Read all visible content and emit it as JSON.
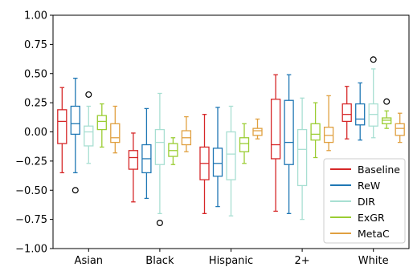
{
  "chart_data": {
    "type": "boxplot",
    "categories": [
      "Asian",
      "Black",
      "Hispanic",
      "2+",
      "White"
    ],
    "ylim": [
      -1.0,
      1.0
    ],
    "yticks": [
      "1.00",
      "0.75",
      "0.50",
      "0.25",
      "0.00",
      "−0.25",
      "−0.50",
      "−0.75",
      "−1.00"
    ],
    "ytick_values": [
      1.0,
      0.75,
      0.5,
      0.25,
      0.0,
      -0.25,
      -0.5,
      -0.75,
      -1.0
    ],
    "grid": false,
    "legend_position": "bottom-right",
    "series": [
      {
        "name": "Baseline",
        "color": "#d62728",
        "boxes": [
          {
            "whislo": -0.35,
            "q1": -0.1,
            "med": 0.09,
            "q3": 0.19,
            "whishi": 0.38,
            "fliers": []
          },
          {
            "whislo": -0.6,
            "q1": -0.32,
            "med": -0.22,
            "q3": -0.16,
            "whishi": -0.01,
            "fliers": []
          },
          {
            "whislo": -0.7,
            "q1": -0.41,
            "med": -0.27,
            "q3": -0.13,
            "whishi": 0.15,
            "fliers": []
          },
          {
            "whislo": -0.68,
            "q1": -0.23,
            "med": -0.11,
            "q3": 0.28,
            "whishi": 0.49,
            "fliers": []
          },
          {
            "whislo": -0.06,
            "q1": 0.09,
            "med": 0.15,
            "q3": 0.24,
            "whishi": 0.39,
            "fliers": []
          }
        ]
      },
      {
        "name": "ReW",
        "color": "#1f77b4",
        "boxes": [
          {
            "whislo": -0.35,
            "q1": -0.02,
            "med": 0.07,
            "q3": 0.22,
            "whishi": 0.46,
            "fliers": [
              -0.5
            ]
          },
          {
            "whislo": -0.57,
            "q1": -0.35,
            "med": -0.23,
            "q3": -0.11,
            "whishi": 0.2,
            "fliers": []
          },
          {
            "whislo": -0.64,
            "q1": -0.38,
            "med": -0.27,
            "q3": -0.14,
            "whishi": 0.21,
            "fliers": []
          },
          {
            "whislo": -0.7,
            "q1": -0.28,
            "med": -0.09,
            "q3": 0.27,
            "whishi": 0.49,
            "fliers": []
          },
          {
            "whislo": -0.07,
            "q1": 0.06,
            "med": 0.11,
            "q3": 0.24,
            "whishi": 0.42,
            "fliers": []
          }
        ]
      },
      {
        "name": "DIR",
        "color": "#a8dfd2",
        "boxes": [
          {
            "whislo": -0.27,
            "q1": -0.12,
            "med": 0.0,
            "q3": 0.05,
            "whishi": 0.22,
            "fliers": [
              0.32
            ]
          },
          {
            "whislo": -0.7,
            "q1": -0.28,
            "med": -0.09,
            "q3": 0.02,
            "whishi": 0.33,
            "fliers": [
              -0.78
            ]
          },
          {
            "whislo": -0.72,
            "q1": -0.41,
            "med": -0.19,
            "q3": 0.0,
            "whishi": 0.22,
            "fliers": []
          },
          {
            "whislo": -0.75,
            "q1": -0.46,
            "med": -0.15,
            "q3": 0.02,
            "whishi": 0.29,
            "fliers": []
          },
          {
            "whislo": -0.05,
            "q1": 0.05,
            "med": 0.15,
            "q3": 0.24,
            "whishi": 0.54,
            "fliers": [
              0.62
            ]
          }
        ]
      },
      {
        "name": "ExGR",
        "color": "#9acd32",
        "boxes": [
          {
            "whislo": -0.13,
            "q1": 0.02,
            "med": 0.09,
            "q3": 0.14,
            "whishi": 0.24,
            "fliers": []
          },
          {
            "whislo": -0.28,
            "q1": -0.21,
            "med": -0.16,
            "q3": -0.1,
            "whishi": -0.05,
            "fliers": []
          },
          {
            "whislo": -0.27,
            "q1": -0.17,
            "med": -0.1,
            "q3": -0.05,
            "whishi": 0.07,
            "fliers": []
          },
          {
            "whislo": -0.22,
            "q1": -0.07,
            "med": -0.02,
            "q3": 0.07,
            "whishi": 0.25,
            "fliers": []
          },
          {
            "whislo": 0.03,
            "q1": 0.07,
            "med": 0.1,
            "q3": 0.12,
            "whishi": 0.18,
            "fliers": [
              0.26
            ]
          }
        ]
      },
      {
        "name": "MetaC",
        "color": "#e0a040",
        "boxes": [
          {
            "whislo": -0.18,
            "q1": -0.09,
            "med": -0.05,
            "q3": 0.07,
            "whishi": 0.22,
            "fliers": []
          },
          {
            "whislo": -0.17,
            "q1": -0.11,
            "med": -0.05,
            "q3": 0.01,
            "whishi": 0.13,
            "fliers": []
          },
          {
            "whislo": -0.06,
            "q1": -0.03,
            "med": 0.01,
            "q3": 0.03,
            "whishi": 0.11,
            "fliers": []
          },
          {
            "whislo": -0.16,
            "q1": -0.09,
            "med": -0.03,
            "q3": 0.04,
            "whishi": 0.31,
            "fliers": []
          },
          {
            "whislo": -0.09,
            "q1": -0.03,
            "med": 0.03,
            "q3": 0.07,
            "whishi": 0.16,
            "fliers": []
          }
        ]
      }
    ]
  }
}
